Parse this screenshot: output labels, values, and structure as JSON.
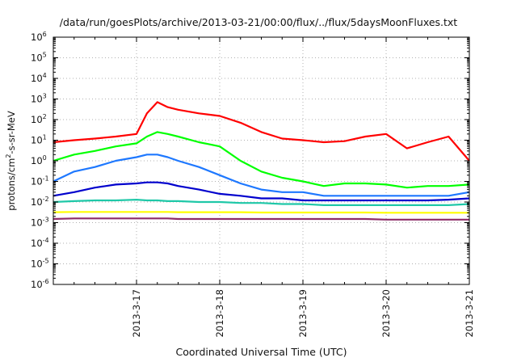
{
  "chart_data": {
    "type": "line",
    "title": "/data/run/goesPlots/archive/2013-03-21/00:00/flux/../flux/5daysMoonFluxes.txt",
    "xlabel": "Coordinated Universal Time (UTC)",
    "ylabel": "protons/cm2-s-sr-MeV",
    "y_scale": "log",
    "ylim": [
      1e-06,
      1000000.0
    ],
    "y_tick_labels": [
      {
        "base": "10",
        "exp": "-6"
      },
      {
        "base": "10",
        "exp": "-5"
      },
      {
        "base": "10",
        "exp": "-4"
      },
      {
        "base": "10",
        "exp": "-3"
      },
      {
        "base": "10",
        "exp": "-2"
      },
      {
        "base": "10",
        "exp": "-1"
      },
      {
        "base": "10",
        "exp": "0"
      },
      {
        "base": "10",
        "exp": "1"
      },
      {
        "base": "10",
        "exp": "2"
      },
      {
        "base": "10",
        "exp": "3"
      },
      {
        "base": "10",
        "exp": "4"
      },
      {
        "base": "10",
        "exp": "5"
      },
      {
        "base": "10",
        "exp": "6"
      }
    ],
    "xlim": [
      "2013-03-16T00:00",
      "2013-03-21T00:00"
    ],
    "x_ticks": [
      "2013-3-17",
      "2013-3-18",
      "2013-3-19",
      "2013-3-20",
      "2013-3-21"
    ],
    "grid": true,
    "x": [
      "2013-03-16T00:00",
      "2013-03-16T06:00",
      "2013-03-16T12:00",
      "2013-03-16T18:00",
      "2013-03-17T00:00",
      "2013-03-17T03:00",
      "2013-03-17T06:00",
      "2013-03-17T09:00",
      "2013-03-17T12:00",
      "2013-03-17T18:00",
      "2013-03-18T00:00",
      "2013-03-18T06:00",
      "2013-03-18T12:00",
      "2013-03-18T18:00",
      "2013-03-19T00:00",
      "2013-03-19T06:00",
      "2013-03-19T12:00",
      "2013-03-19T18:00",
      "2013-03-20T00:00",
      "2013-03-20T06:00",
      "2013-03-20T12:00",
      "2013-03-20T18:00",
      "2013-03-21T00:00"
    ],
    "series": [
      {
        "color": "#ff0000",
        "values": [
          8,
          10,
          12,
          15,
          20,
          200,
          700,
          400,
          300,
          200,
          150,
          70,
          25,
          12,
          10,
          8,
          9,
          15,
          20,
          4,
          8,
          15,
          1
        ]
      },
      {
        "color": "#00ff00",
        "values": [
          1,
          2,
          3,
          5,
          7,
          15,
          25,
          20,
          15,
          8,
          5,
          1,
          0.3,
          0.15,
          0.1,
          0.06,
          0.08,
          0.08,
          0.07,
          0.05,
          0.06,
          0.06,
          0.07
        ]
      },
      {
        "color": "#1e78ff",
        "values": [
          0.1,
          0.3,
          0.5,
          1,
          1.5,
          2,
          2,
          1.5,
          1,
          0.5,
          0.2,
          0.08,
          0.04,
          0.03,
          0.03,
          0.02,
          0.02,
          0.02,
          0.02,
          0.02,
          0.02,
          0.02,
          0.03
        ]
      },
      {
        "color": "#0000cd",
        "values": [
          0.02,
          0.03,
          0.05,
          0.07,
          0.08,
          0.09,
          0.09,
          0.08,
          0.06,
          0.04,
          0.025,
          0.02,
          0.015,
          0.015,
          0.012,
          0.012,
          0.012,
          0.012,
          0.012,
          0.012,
          0.012,
          0.013,
          0.015
        ]
      },
      {
        "color": "#1fc8a8",
        "values": [
          0.01,
          0.011,
          0.012,
          0.012,
          0.013,
          0.012,
          0.012,
          0.011,
          0.011,
          0.01,
          0.01,
          0.009,
          0.009,
          0.008,
          0.008,
          0.007,
          0.007,
          0.007,
          0.007,
          0.007,
          0.007,
          0.007,
          0.008
        ]
      },
      {
        "color": "#ffff00",
        "values": [
          0.0032,
          0.0033,
          0.0033,
          0.0033,
          0.0033,
          0.0033,
          0.0033,
          0.0033,
          0.0032,
          0.0032,
          0.0032,
          0.0032,
          0.0031,
          0.0031,
          0.0031,
          0.0031,
          0.0031,
          0.0031,
          0.003,
          0.003,
          0.003,
          0.003,
          0.003
        ]
      },
      {
        "color": "#8e2d68",
        "values": [
          0.0015,
          0.0016,
          0.0016,
          0.0016,
          0.0016,
          0.0016,
          0.0016,
          0.0016,
          0.0015,
          0.0015,
          0.0015,
          0.0015,
          0.0015,
          0.0015,
          0.0015,
          0.0015,
          0.0015,
          0.0015,
          0.0014,
          0.0014,
          0.0014,
          0.0014,
          0.0014
        ]
      }
    ]
  }
}
